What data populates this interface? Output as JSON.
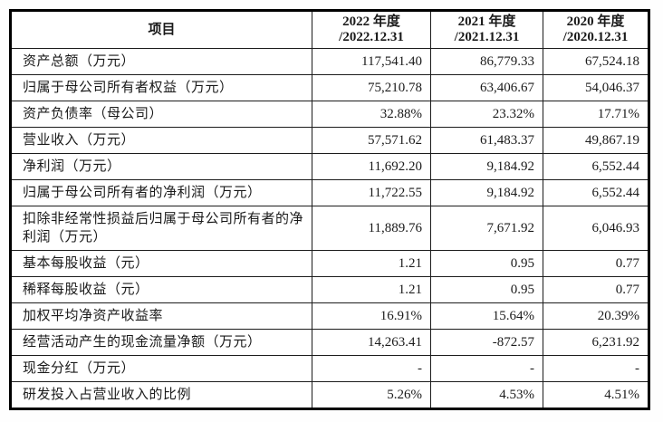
{
  "page": {
    "background_color": "#ffffff",
    "border_color": "#000000",
    "text_color": "#1a1a1a"
  },
  "table": {
    "item_header": "项目",
    "columns": [
      {
        "line1": "2022 年度",
        "line2": "/2022.12.31"
      },
      {
        "line1": "2021 年度",
        "line2": "/2021.12.31"
      },
      {
        "line1": "2020 年度",
        "line2": "/2020.12.31"
      }
    ],
    "rows": [
      {
        "label": "资产总额（万元）",
        "values": [
          "117,541.40",
          "86,779.33",
          "67,524.18"
        ]
      },
      {
        "label": "归属于母公司所有者权益（万元）",
        "values": [
          "75,210.78",
          "63,406.67",
          "54,046.37"
        ]
      },
      {
        "label": "资产负债率（母公司）",
        "values": [
          "32.88%",
          "23.32%",
          "17.71%"
        ]
      },
      {
        "label": "营业收入（万元）",
        "values": [
          "57,571.62",
          "61,483.37",
          "49,867.19"
        ]
      },
      {
        "label": "净利润（万元）",
        "values": [
          "11,692.20",
          "9,184.92",
          "6,552.44"
        ]
      },
      {
        "label": "归属于母公司所有者的净利润（万元）",
        "values": [
          "11,722.55",
          "9,184.92",
          "6,552.44"
        ]
      },
      {
        "label": "扣除非经常性损益后归属于母公司所有者的净利润（万元）",
        "values": [
          "11,889.76",
          "7,671.92",
          "6,046.93"
        ]
      },
      {
        "label": "基本每股收益（元）",
        "values": [
          "1.21",
          "0.95",
          "0.77"
        ]
      },
      {
        "label": "稀释每股收益（元）",
        "values": [
          "1.21",
          "0.95",
          "0.77"
        ]
      },
      {
        "label": "加权平均净资产收益率",
        "values": [
          "16.91%",
          "15.64%",
          "20.39%"
        ]
      },
      {
        "label": "经营活动产生的现金流量净额（万元）",
        "values": [
          "14,263.41",
          "-872.57",
          "6,231.92"
        ]
      },
      {
        "label": "现金分红（万元）",
        "values": [
          "-",
          "-",
          "-"
        ]
      },
      {
        "label": "研发投入占营业收入的比例",
        "values": [
          "5.26%",
          "4.53%",
          "4.51%"
        ]
      }
    ]
  }
}
